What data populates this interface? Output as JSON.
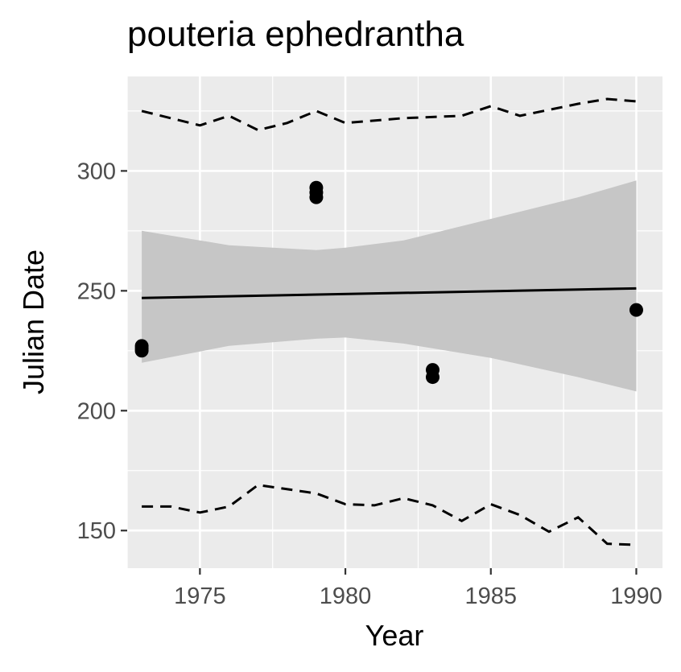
{
  "chart_data": {
    "type": "scatter",
    "title": "pouteria ephedrantha",
    "xlabel": "Year",
    "ylabel": "Julian Date",
    "xlim": [
      1972.5,
      1990.9
    ],
    "ylim": [
      134.3,
      339.4
    ],
    "x_ticks": [
      {
        "value": 1975,
        "label": "1975"
      },
      {
        "value": 1980,
        "label": "1980"
      },
      {
        "value": 1985,
        "label": "1985"
      },
      {
        "value": 1990,
        "label": "1990"
      }
    ],
    "y_ticks": [
      {
        "value": 150,
        "label": "150"
      },
      {
        "value": 200,
        "label": "200"
      },
      {
        "value": 250,
        "label": "250"
      },
      {
        "value": 300,
        "label": "300"
      }
    ],
    "points": [
      {
        "x": 1973,
        "y": 225
      },
      {
        "x": 1973,
        "y": 226
      },
      {
        "x": 1973,
        "y": 227
      },
      {
        "x": 1979,
        "y": 289
      },
      {
        "x": 1979,
        "y": 291
      },
      {
        "x": 1979,
        "y": 293
      },
      {
        "x": 1983,
        "y": 214
      },
      {
        "x": 1983,
        "y": 217
      },
      {
        "x": 1990,
        "y": 242
      }
    ],
    "trend_line": {
      "x": [
        1973,
        1990
      ],
      "y": [
        247,
        251
      ]
    },
    "confidence_band": {
      "x": [
        1973,
        1976,
        1979,
        1980,
        1982,
        1985,
        1988,
        1990
      ],
      "lower": [
        220,
        227,
        230,
        230.5,
        228,
        222,
        214,
        208
      ],
      "upper": [
        275,
        269,
        267,
        268,
        271,
        280,
        289,
        296
      ]
    },
    "upper_dashed": {
      "x": [
        1973,
        1975,
        1976,
        1977,
        1978,
        1979,
        1980,
        1982,
        1984,
        1985,
        1986,
        1988,
        1989,
        1990
      ],
      "y": [
        325,
        319,
        323,
        317,
        320,
        325,
        320,
        322,
        323,
        327,
        323,
        328,
        330,
        329
      ]
    },
    "lower_dashed": {
      "x": [
        1973,
        1974,
        1975,
        1976,
        1977,
        1979,
        1980,
        1981,
        1982,
        1983,
        1984,
        1985,
        1986,
        1987,
        1988,
        1989,
        1990
      ],
      "y": [
        160,
        160,
        157.5,
        160,
        169,
        165.5,
        161,
        160.5,
        163.5,
        160.5,
        154,
        161,
        156.5,
        149.5,
        155.5,
        144.5,
        144
      ]
    },
    "grid": true,
    "colors": {
      "panel": "#ebebeb",
      "grid": "#ffffff",
      "points": "#000000",
      "band": "#c6c6c6",
      "line": "#000000",
      "tick_text": "#4d4d4d"
    }
  }
}
